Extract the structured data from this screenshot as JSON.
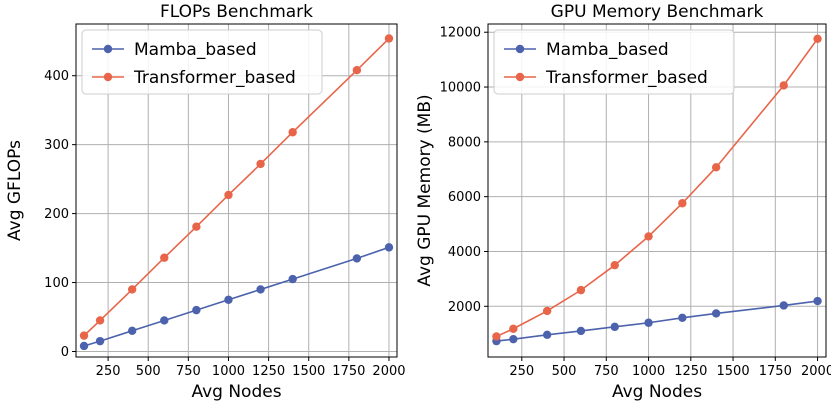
{
  "chart_data": [
    {
      "type": "line",
      "title": "FLOPs Benchmark",
      "xlabel": "Avg Nodes",
      "ylabel": "Avg GFLOPs",
      "xlim": [
        50,
        2050
      ],
      "ylim": [
        -8,
        475
      ],
      "xticks": [
        250,
        500,
        750,
        1000,
        1250,
        1500,
        1750,
        2000
      ],
      "yticks": [
        0,
        100,
        200,
        300,
        400
      ],
      "grid": true,
      "legend": "top-left",
      "x": [
        100,
        200,
        400,
        600,
        800,
        1000,
        1200,
        1400,
        1800,
        2000
      ],
      "series": [
        {
          "name": "Mamba_based",
          "color": "#4c62ad",
          "values": [
            8,
            15,
            30,
            45,
            60,
            75,
            90,
            105,
            135,
            151
          ]
        },
        {
          "name": "Transformer_based",
          "color": "#e8654a",
          "values": [
            23,
            45,
            90,
            136,
            181,
            227,
            272,
            318,
            408,
            454
          ]
        }
      ]
    },
    {
      "type": "line",
      "title": "GPU Memory Benchmark",
      "xlabel": "Avg Nodes",
      "ylabel": "Avg GPU Memory (MB)",
      "xlim": [
        50,
        2050
      ],
      "ylim": [
        150,
        12300
      ],
      "xticks": [
        250,
        500,
        750,
        1000,
        1250,
        1500,
        1750,
        2000
      ],
      "yticks": [
        2000,
        4000,
        6000,
        8000,
        10000,
        12000
      ],
      "grid": true,
      "legend": "top-left",
      "x": [
        100,
        200,
        400,
        600,
        800,
        1000,
        1200,
        1400,
        1800,
        2000
      ],
      "series": [
        {
          "name": "Mamba_based",
          "color": "#4c62ad",
          "values": [
            730,
            800,
            960,
            1100,
            1250,
            1400,
            1580,
            1740,
            2030,
            2190
          ]
        },
        {
          "name": "Transformer_based",
          "color": "#e8654a",
          "values": [
            900,
            1180,
            1830,
            2590,
            3500,
            4550,
            5760,
            7070,
            10060,
            11760
          ]
        }
      ]
    }
  ]
}
